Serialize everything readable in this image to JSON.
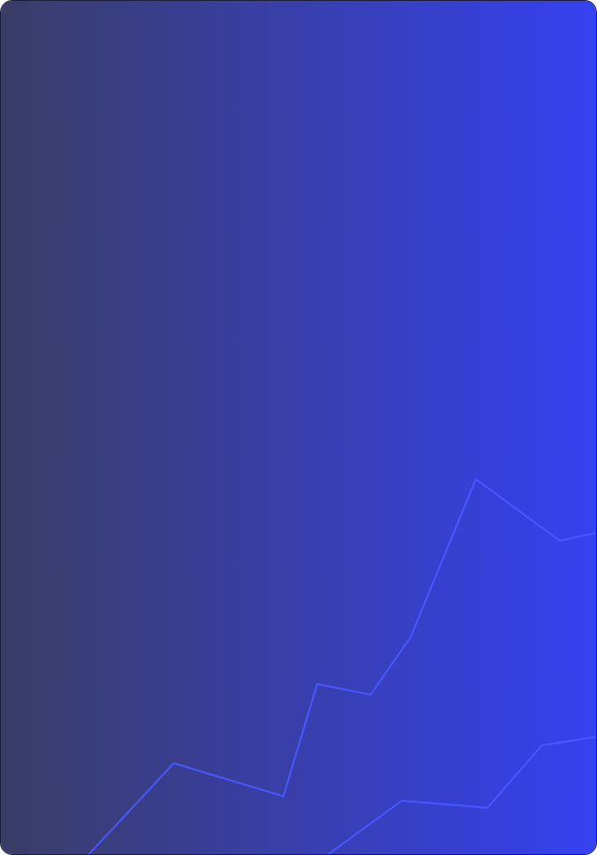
{
  "card": {
    "gradient_start": "#3a3d66",
    "gradient_end": "#3641f2",
    "border_color": "#1a1d3d",
    "line_color": "#4a57ff"
  }
}
